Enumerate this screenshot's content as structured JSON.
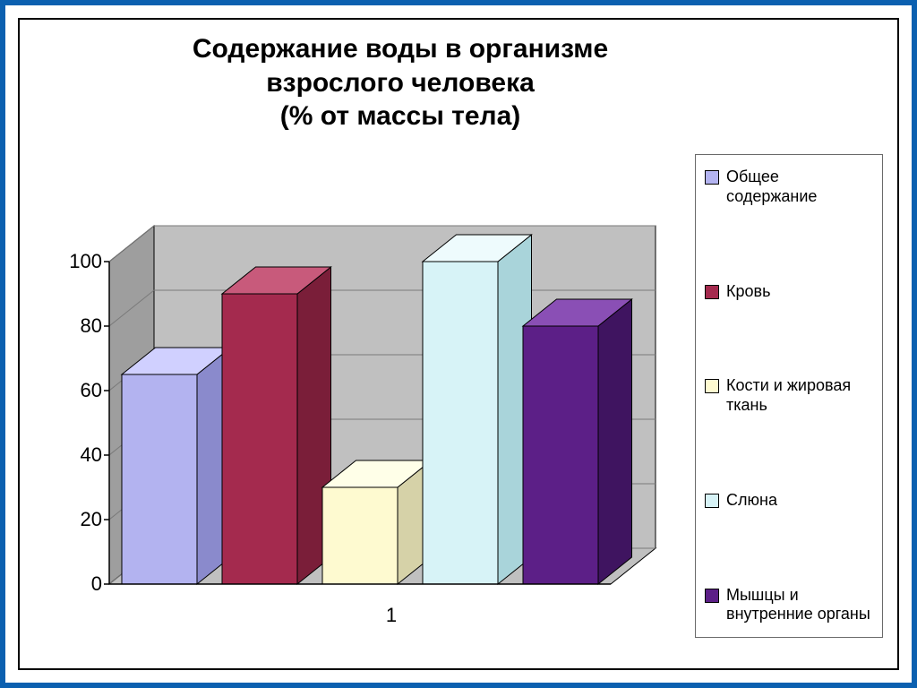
{
  "title_line1": "Содержание воды в организме",
  "title_line2": "взрослого человека",
  "title_line3": "(% от массы тела)",
  "chart": {
    "type": "bar-3d",
    "categories": [
      "1"
    ],
    "series": [
      {
        "label": "Общее содержание",
        "value": 65,
        "fill": "#b3b3f0",
        "side": "#8a8acc",
        "top": "#d0d0ff"
      },
      {
        "label": "Кровь",
        "value": 90,
        "fill": "#a42a4e",
        "side": "#7a1e39",
        "top": "#c85a7b"
      },
      {
        "label": "Кости и жировая ткань",
        "value": 30,
        "fill": "#fefad0",
        "side": "#d6d2a8",
        "top": "#ffffe8"
      },
      {
        "label": "Слюна",
        "value": 100,
        "fill": "#d7f3f7",
        "side": "#a9d4da",
        "top": "#eefbfd"
      },
      {
        "label": "Мышцы и внутренние органы",
        "value": 80,
        "fill": "#5c1f87",
        "side": "#3f1460",
        "top": "#8a4fb5"
      }
    ],
    "ylim": [
      0,
      100
    ],
    "ytick_step": 20,
    "yticks": [
      0,
      20,
      40,
      60,
      80,
      100
    ],
    "floor_color": "#c0c0c0",
    "back_wall_color": "#c0c0c0",
    "side_wall_color": "#9e9e9e",
    "grid_color": "#7a7a7a",
    "axis_color": "#000000",
    "bar_width": 0.75,
    "tick_label_fontsize": 22,
    "title_fontsize": 30,
    "legend_fontsize": 18,
    "background_color": "#ffffff",
    "frame_border_color": "#0b60b0"
  }
}
